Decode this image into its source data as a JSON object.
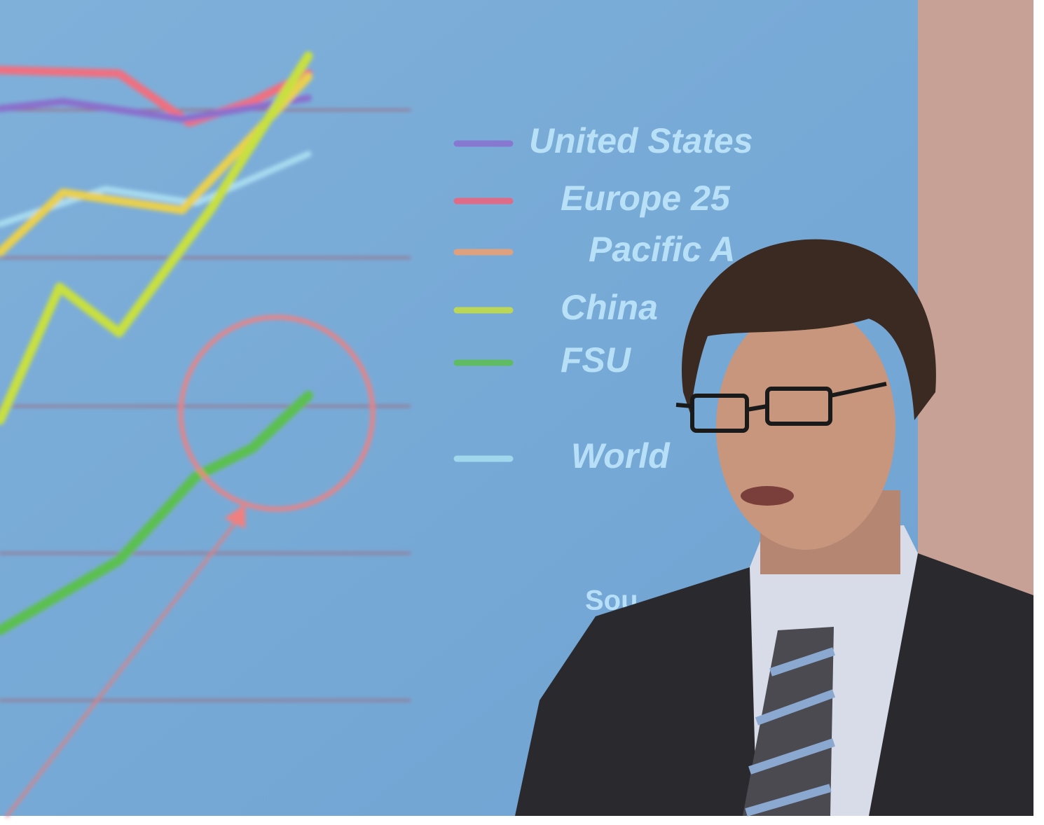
{
  "scene": {
    "legend": [
      {
        "label": "United States",
        "color": "#8a6fd0"
      },
      {
        "label": "Europe 25",
        "color": "#f0607a"
      },
      {
        "label": "Pacific A",
        "color": "#f0a070"
      },
      {
        "label": "China",
        "color": "#c8e040"
      },
      {
        "label": "FSU",
        "color": "#5cc050"
      },
      {
        "label": "World",
        "color": "#a8e0f0"
      }
    ],
    "source": "Sou"
  }
}
